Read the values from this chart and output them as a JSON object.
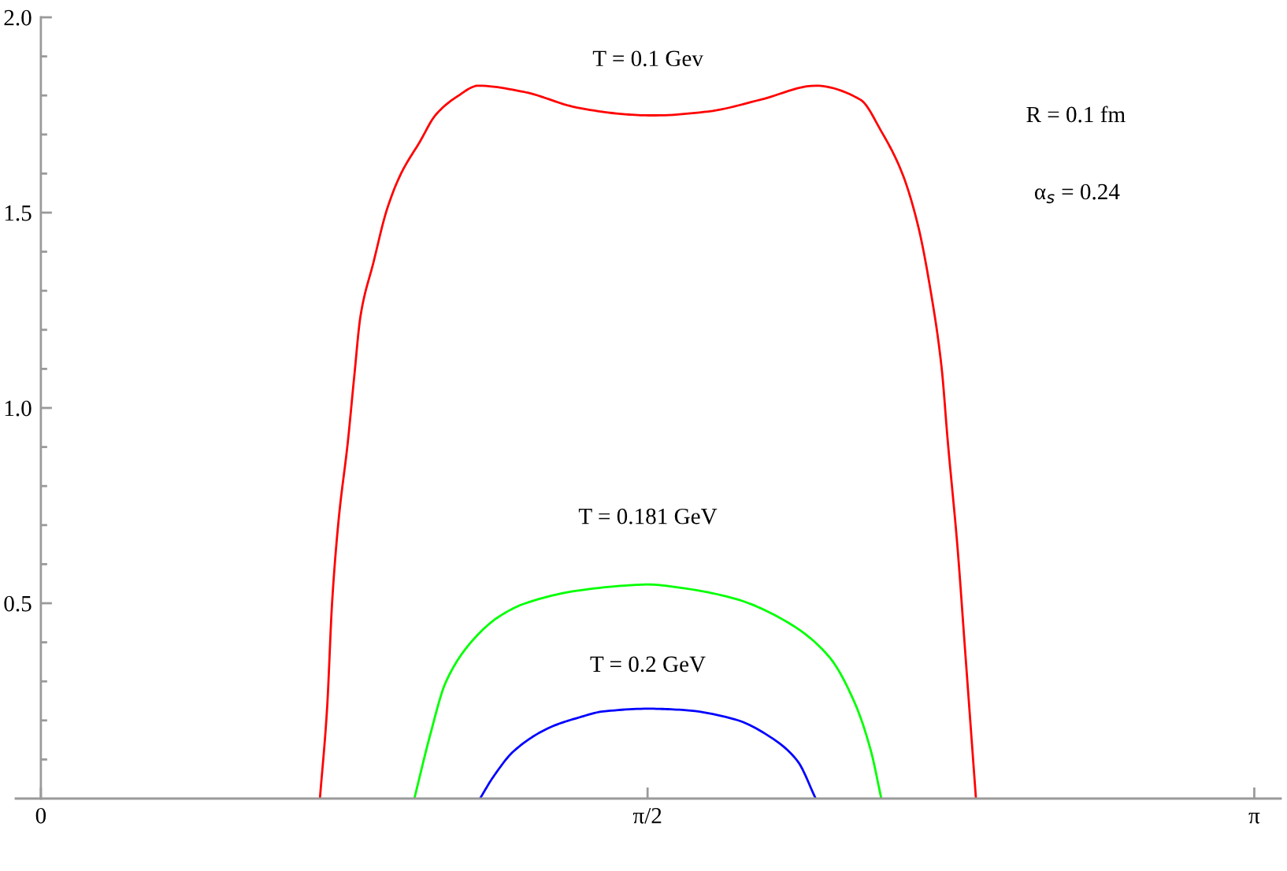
{
  "chart_data": {
    "type": "line",
    "xlim": [
      -0.065,
      3.21
    ],
    "ylim": [
      0,
      2
    ],
    "xticks": [
      0,
      {
        "value": 1.5708,
        "label": "π/2"
      },
      {
        "value": 3.1416,
        "label": "π"
      }
    ],
    "yticks": [
      {
        "value": 0.1,
        "label": null
      },
      {
        "value": 0.2,
        "label": null
      },
      {
        "value": 0.3,
        "label": null
      },
      {
        "value": 0.4,
        "label": null
      },
      {
        "value": 0.5,
        "label": "0.5"
      },
      {
        "value": 0.6,
        "label": null
      },
      {
        "value": 0.7,
        "label": null
      },
      {
        "value": 0.8,
        "label": null
      },
      {
        "value": 0.9,
        "label": null
      },
      {
        "value": 1,
        "label": "1.0"
      },
      {
        "value": 1.1,
        "label": null
      },
      {
        "value": 1.2,
        "label": null
      },
      {
        "value": 1.3,
        "label": null
      },
      {
        "value": 1.4,
        "label": null
      },
      {
        "value": 1.5,
        "label": "1.5"
      },
      {
        "value": 1.6,
        "label": null
      },
      {
        "value": 1.7,
        "label": null
      },
      {
        "value": 1.8,
        "label": null
      },
      {
        "value": 1.9,
        "label": null
      },
      {
        "value": 2,
        "label": "2.0"
      }
    ],
    "annotations": [
      "R = 0.1 fm",
      "α$_{s}$ = 0.24"
    ],
    "series": [
      {
        "name": "T = 0.1 Gev",
        "color": "#ff0000",
        "x": [
          0.7225,
          0.741,
          0.754,
          0.771,
          0.795,
          0.811,
          0.828,
          0.861,
          0.896,
          0.933,
          0.981,
          1.022,
          1.076,
          1.133,
          1.251,
          1.388,
          1.524,
          1.5708,
          1.592,
          1.728,
          1.863,
          2.006,
          2.122,
          2.176,
          2.23,
          2.271,
          2.305,
          2.332,
          2.348,
          2.373,
          2.393,
          2.421
        ],
        "values": [
          0,
          0.23,
          0.501,
          0.714,
          0.915,
          1.077,
          1.238,
          1.372,
          1.508,
          1.601,
          1.681,
          1.75,
          1.796,
          1.825,
          1.809,
          1.769,
          1.751,
          1.749,
          1.749,
          1.759,
          1.789,
          1.825,
          1.789,
          1.708,
          1.601,
          1.467,
          1.292,
          1.104,
          0.915,
          0.646,
          0.378,
          0
        ]
      },
      {
        "name": "T = 0.181 GeV",
        "color": "#00ff00",
        "x": [
          0.967,
          1.008,
          1.048,
          1.117,
          1.185,
          1.252,
          1.388,
          1.524,
          1.572,
          1.66,
          1.796,
          1.932,
          2.04,
          2.108,
          2.149,
          2.176
        ],
        "values": [
          0,
          0.163,
          0.297,
          0.404,
          0.465,
          0.499,
          0.532,
          0.546,
          0.548,
          0.539,
          0.512,
          0.452,
          0.364,
          0.243,
          0.122,
          0
        ]
      },
      {
        "name": "T = 0.2 GeV",
        "color": "#0000ff",
        "x": [
          1.137,
          1.171,
          1.225,
          1.32,
          1.388,
          1.456,
          1.572,
          1.66,
          1.796,
          1.891,
          1.959,
          2.006
        ],
        "values": [
          0,
          0.055,
          0.122,
          0.183,
          0.206,
          0.223,
          0.23,
          0.227,
          0.203,
          0.156,
          0.096,
          0
        ]
      }
    ]
  }
}
